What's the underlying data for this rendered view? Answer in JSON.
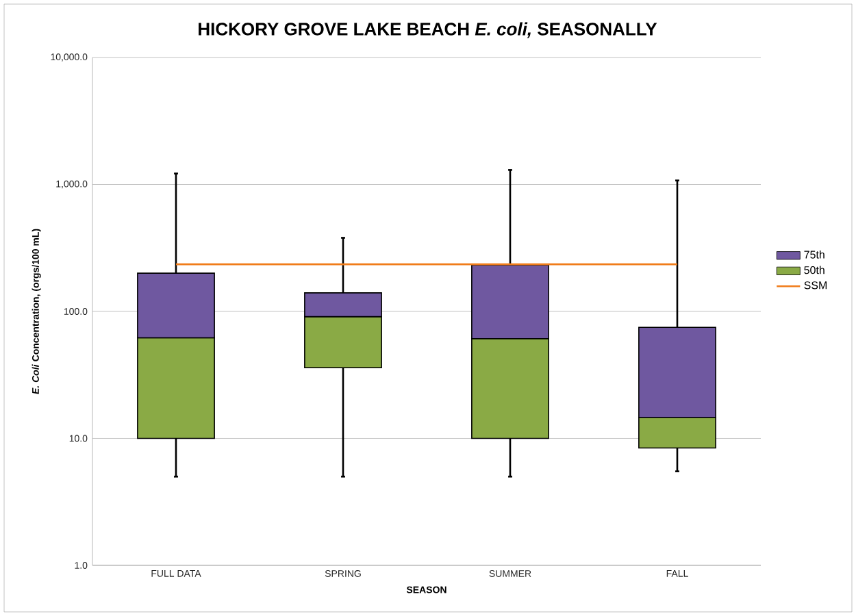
{
  "chart_data": {
    "type": "bar",
    "title": "HICKORY GROVE LAKE BEACH *E. coli,* SEASONALLY",
    "xlabel": "SEASON",
    "ylabel": "*E. Coli* Concentration, (orgs/100 mL)",
    "categories": [
      "FULL DATA",
      "SPRING",
      "SUMMER",
      "FALL"
    ],
    "series": [
      {
        "name": "50th",
        "color": "#8aaa45",
        "base": [
          10,
          36,
          10,
          8.4
        ],
        "values": [
          52,
          55,
          51,
          6.2
        ],
        "errors": [
          [
            5,
            10
          ],
          [
            5,
            36
          ],
          [
            5,
            10
          ],
          [
            5.5,
            8.4
          ]
        ]
      },
      {
        "name": "75th",
        "color": "#6f58a0",
        "base": [
          62,
          91,
          61,
          14.6
        ],
        "values": [
          138,
          49,
          171,
          60.4
        ],
        "errors": [
          [
            200,
            1220
          ],
          [
            140,
            380
          ],
          [
            232,
            1300
          ],
          [
            75,
            1075
          ]
        ]
      },
      {
        "name": "SSM",
        "type": "line",
        "color": "#f07c1a",
        "values": [
          235,
          235,
          235,
          235
        ]
      }
    ],
    "log": "y",
    "ylim": [
      1,
      10000
    ],
    "yticks": [
      {
        "value": 1,
        "label": "1.0"
      },
      {
        "value": 10,
        "label": "10.0"
      },
      {
        "value": 100,
        "label": "100.0"
      },
      {
        "value": 1000,
        "label": "1,000.0"
      },
      {
        "value": 10000,
        "label": "10,000.0"
      }
    ],
    "grid": "y",
    "legend": "right"
  }
}
